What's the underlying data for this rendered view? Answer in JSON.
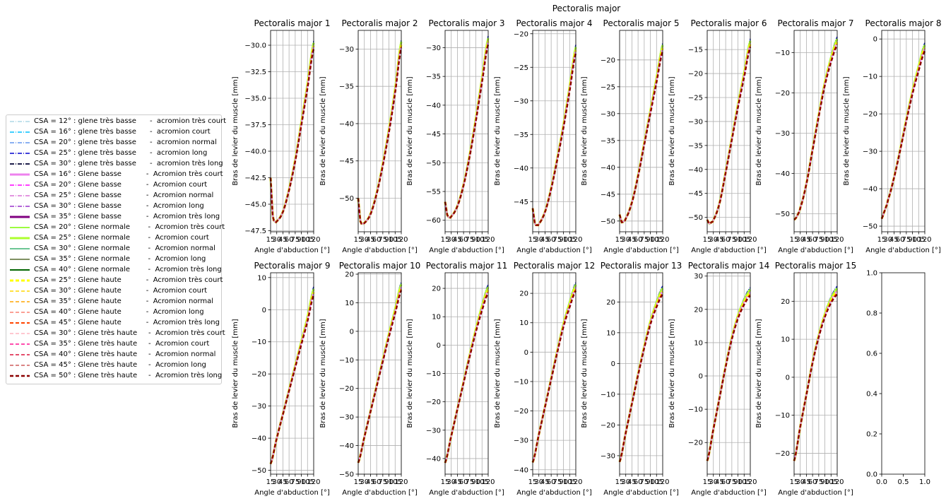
{
  "suptitle": "Pectoralis major",
  "chart_data": [
    {
      "type": "line",
      "title": "Pectoralis major 1",
      "xlabel": "Angle d'abduction [°]",
      "ylabel": "Bras de levier du muscle [mm]",
      "xlim": [
        15,
        120
      ],
      "ylim": [
        -47.6,
        -28.6
      ],
      "yticks": [
        -30.0,
        -32.5,
        -35.0,
        -37.5,
        -40.0,
        -42.5,
        -45.0,
        -47.5
      ],
      "ytick_labels": [
        "−30.0",
        "−32.5",
        "−35.0",
        "−37.5",
        "−40.0",
        "−42.5",
        "−45.0",
        "−47.5"
      ],
      "xtick_labels": [
        "15",
        "30",
        "45",
        "60",
        "75",
        "90",
        "105",
        "120"
      ],
      "grid": true,
      "x": [
        15,
        20,
        25,
        30,
        45,
        60,
        75,
        90,
        105,
        120
      ],
      "y": [
        -42.5,
        -46.0,
        -46.6,
        -46.6,
        -45.7,
        -43.6,
        -40.8,
        -37.3,
        -33.7,
        -29.9
      ]
    },
    {
      "type": "line",
      "title": "Pectoralis major 2",
      "xlabel": "Angle d'abduction [°]",
      "ylabel": "Bras de levier du muscle [mm]",
      "xlim": [
        15,
        120
      ],
      "ylim": [
        -54.5,
        -27.5
      ],
      "yticks": [
        -30,
        -35,
        -40,
        -45,
        -50
      ],
      "ytick_labels": [
        "−30",
        "−35",
        "−40",
        "−45",
        "−50"
      ],
      "xtick_labels": [
        "15",
        "30",
        "45",
        "60",
        "75",
        "90",
        "105",
        "120"
      ],
      "grid": true,
      "x": [
        15,
        20,
        25,
        30,
        45,
        60,
        75,
        90,
        105,
        120
      ],
      "y": [
        -50.0,
        -53.0,
        -53.4,
        -53.3,
        -52.1,
        -49.3,
        -45.4,
        -40.8,
        -35.4,
        -29.2
      ]
    },
    {
      "type": "line",
      "title": "Pectoralis major 3",
      "xlabel": "Angle d'abduction [°]",
      "ylabel": "Bras de levier du muscle [mm]",
      "xlim": [
        15,
        120
      ],
      "ylim": [
        -62.0,
        -27.0
      ],
      "yticks": [
        -30,
        -35,
        -40,
        -45,
        -50,
        -55,
        -60
      ],
      "ytick_labels": [
        "−30",
        "−35",
        "−40",
        "−45",
        "−50",
        "−55",
        "−60"
      ],
      "xtick_labels": [
        "15",
        "30",
        "45",
        "60",
        "75",
        "90",
        "105",
        "120"
      ],
      "grid": true,
      "x": [
        15,
        20,
        25,
        30,
        45,
        60,
        75,
        90,
        105,
        120
      ],
      "y": [
        -56.8,
        -59.0,
        -59.5,
        -59.3,
        -57.5,
        -53.8,
        -48.6,
        -42.3,
        -35.4,
        -28.6
      ]
    },
    {
      "type": "line",
      "title": "Pectoralis major 4",
      "xlabel": "Angle d'abduction [°]",
      "ylabel": "Bras de levier du muscle [mm]",
      "xlim": [
        15,
        120
      ],
      "ylim": [
        -49.5,
        -19.5
      ],
      "yticks": [
        -20,
        -25,
        -30,
        -35,
        -40,
        -45
      ],
      "ytick_labels": [
        "−20",
        "−25",
        "−30",
        "−35",
        "−40",
        "−45"
      ],
      "xtick_labels": [
        "15",
        "30",
        "45",
        "60",
        "75",
        "90",
        "105",
        "120"
      ],
      "grid": true,
      "x": [
        15,
        20,
        25,
        30,
        45,
        60,
        75,
        90,
        105,
        120
      ],
      "y": [
        -46.0,
        -48.2,
        -48.5,
        -48.3,
        -46.5,
        -43.0,
        -38.5,
        -33.6,
        -28.0,
        -22.2
      ]
    },
    {
      "type": "line",
      "title": "Pectoralis major 5",
      "xlabel": "Angle d'abduction [°]",
      "ylabel": "Bras de levier du muscle [mm]",
      "xlim": [
        15,
        120
      ],
      "ylim": [
        -52.0,
        -14.5
      ],
      "yticks": [
        -20,
        -25,
        -30,
        -35,
        -40,
        -45,
        -50
      ],
      "ytick_labels": [
        "−20",
        "−25",
        "−30",
        "−35",
        "−40",
        "−45",
        "−50"
      ],
      "xtick_labels": [
        "15",
        "30",
        "45",
        "60",
        "75",
        "90",
        "105",
        "120"
      ],
      "grid": true,
      "x": [
        15,
        20,
        25,
        30,
        45,
        60,
        75,
        90,
        105,
        120
      ],
      "y": [
        -48.8,
        -50.2,
        -50.0,
        -49.5,
        -46.5,
        -41.5,
        -35.5,
        -29.5,
        -23.5,
        -17.5
      ]
    },
    {
      "type": "line",
      "title": "Pectoralis major 6",
      "xlabel": "Angle d'abduction [°]",
      "ylabel": "Bras de levier du muscle [mm]",
      "xlim": [
        15,
        120
      ],
      "ylim": [
        -53.0,
        -11.0
      ],
      "yticks": [
        -15,
        -20,
        -25,
        -30,
        -35,
        -40,
        -45,
        -50
      ],
      "ytick_labels": [
        "−15",
        "−20",
        "−25",
        "−30",
        "−35",
        "−40",
        "−45",
        "−50"
      ],
      "xtick_labels": [
        "15",
        "30",
        "45",
        "60",
        "75",
        "90",
        "105",
        "120"
      ],
      "grid": true,
      "x": [
        15,
        20,
        25,
        30,
        45,
        60,
        75,
        90,
        105,
        120
      ],
      "y": [
        -50.5,
        -51.3,
        -51.0,
        -50.5,
        -47.0,
        -40.5,
        -33.5,
        -26.5,
        -20.0,
        -13.5
      ]
    },
    {
      "type": "line",
      "title": "Pectoralis major 7",
      "xlabel": "Angle d'abduction [°]",
      "ylabel": "Bras de levier du muscle [mm]",
      "xlim": [
        15,
        120
      ],
      "ylim": [
        -54.5,
        -4.5
      ],
      "yticks": [
        -10,
        -20,
        -30,
        -40,
        -50
      ],
      "ytick_labels": [
        "−10",
        "−20",
        "−30",
        "−40",
        "−50"
      ],
      "xtick_labels": [
        "15",
        "30",
        "45",
        "60",
        "75",
        "90",
        "105",
        "120"
      ],
      "grid": true,
      "x": [
        15,
        20,
        25,
        30,
        45,
        60,
        75,
        90,
        105,
        120
      ],
      "y": [
        -51.5,
        -51.0,
        -50.0,
        -48.5,
        -42.5,
        -34.0,
        -25.5,
        -17.5,
        -11.5,
        -7.0
      ]
    },
    {
      "type": "line",
      "title": "Pectoralis major 8",
      "xlabel": "Angle d'abduction [°]",
      "ylabel": "Bras de levier du muscle [mm]",
      "xlim": [
        15,
        120
      ],
      "ylim": [
        -51.5,
        2.3
      ],
      "yticks": [
        0,
        -10,
        -20,
        -30,
        -40,
        -50
      ],
      "ytick_labels": [
        "0",
        "−10",
        "−20",
        "−30",
        "−40",
        "−50"
      ],
      "xtick_labels": [
        "15",
        "30",
        "45",
        "60",
        "75",
        "90",
        "105",
        "120"
      ],
      "grid": true,
      "x": [
        15,
        20,
        25,
        30,
        45,
        60,
        75,
        90,
        105,
        120
      ],
      "y": [
        -48.0,
        -46.5,
        -45.0,
        -43.0,
        -37.0,
        -29.5,
        -21.5,
        -14.0,
        -7.5,
        -2.0
      ]
    },
    {
      "type": "line",
      "title": "Pectoralis major 9",
      "xlabel": "Angle d'abduction [°]",
      "ylabel": "Bras de levier du muscle [mm]",
      "xlim": [
        15,
        120
      ],
      "ylim": [
        -51.2,
        11.5
      ],
      "yticks": [
        10,
        0,
        -10,
        -20,
        -30,
        -40,
        -50
      ],
      "ytick_labels": [
        "10",
        "0",
        "−10",
        "−20",
        "−30",
        "−40",
        "−50"
      ],
      "xtick_labels": [
        "15",
        "30",
        "45",
        "60",
        "75",
        "90",
        "105",
        "120"
      ],
      "grid": true,
      "x": [
        15,
        30,
        45,
        60,
        75,
        90,
        105,
        120
      ],
      "y": [
        -48.0,
        -40.0,
        -32.5,
        -25.0,
        -17.5,
        -10.0,
        -2.5,
        6.0
      ]
    },
    {
      "type": "line",
      "title": "Pectoralis major 10",
      "xlabel": "Angle d'abduction [°]",
      "ylabel": "Bras de levier du muscle [mm]",
      "xlim": [
        15,
        120
      ],
      "ylim": [
        -50.0,
        20.5
      ],
      "yticks": [
        20,
        10,
        0,
        -10,
        -20,
        -30,
        -40,
        -50
      ],
      "ytick_labels": [
        "20",
        "10",
        "0",
        "−10",
        "−20",
        "−30",
        "−40",
        "−50"
      ],
      "xtick_labels": [
        "15",
        "30",
        "45",
        "60",
        "75",
        "90",
        "105",
        "120"
      ],
      "grid": true,
      "x": [
        15,
        30,
        45,
        60,
        75,
        90,
        105,
        120
      ],
      "y": [
        -46.0,
        -37.0,
        -28.0,
        -19.0,
        -10.0,
        -1.0,
        7.5,
        16.0
      ]
    },
    {
      "type": "line",
      "title": "Pectoralis major 11",
      "xlabel": "Angle d'abduction [°]",
      "ylabel": "Bras de levier du muscle [mm]",
      "xlim": [
        15,
        120
      ],
      "ylim": [
        -45.5,
        25.5
      ],
      "yticks": [
        20,
        10,
        0,
        -10,
        -20,
        -30,
        -40
      ],
      "ytick_labels": [
        "20",
        "10",
        "0",
        "−10",
        "−20",
        "−30",
        "−40"
      ],
      "xtick_labels": [
        "15",
        "30",
        "45",
        "60",
        "75",
        "90",
        "105",
        "120"
      ],
      "grid": true,
      "x": [
        15,
        30,
        45,
        60,
        75,
        90,
        105,
        120
      ],
      "y": [
        -41.5,
        -32.0,
        -22.5,
        -13.0,
        -3.5,
        5.5,
        13.5,
        20.0
      ]
    },
    {
      "type": "line",
      "title": "Pectoralis major 12",
      "xlabel": "Angle d'abduction [°]",
      "ylabel": "Bras de levier du muscle [mm]",
      "xlim": [
        15,
        120
      ],
      "ylim": [
        -41.5,
        27.0
      ],
      "yticks": [
        20,
        10,
        0,
        -10,
        -20,
        -30,
        -40
      ],
      "ytick_labels": [
        "20",
        "10",
        "0",
        "−10",
        "−20",
        "−30",
        "−40"
      ],
      "xtick_labels": [
        "15",
        "30",
        "45",
        "60",
        "75",
        "90",
        "105",
        "120"
      ],
      "grid": true,
      "x": [
        15,
        30,
        45,
        60,
        75,
        90,
        105,
        120
      ],
      "y": [
        -37.5,
        -28.0,
        -18.5,
        -9.0,
        0.5,
        9.5,
        16.5,
        22.5
      ]
    },
    {
      "type": "line",
      "title": "Pectoralis major 13",
      "xlabel": "Angle d'abduction [°]",
      "ylabel": "Bras de levier du muscle [mm]",
      "xlim": [
        15,
        120
      ],
      "ylim": [
        -36.0,
        29.5
      ],
      "yticks": [
        20,
        10,
        0,
        -10,
        -20,
        -30
      ],
      "ytick_labels": [
        "20",
        "10",
        "0",
        "−10",
        "−20",
        "−30"
      ],
      "xtick_labels": [
        "15",
        "30",
        "45",
        "60",
        "75",
        "90",
        "105",
        "120"
      ],
      "grid": true,
      "x": [
        15,
        30,
        45,
        60,
        75,
        90,
        105,
        120
      ],
      "y": [
        -32.0,
        -22.5,
        -13.0,
        -3.5,
        5.5,
        13.5,
        19.5,
        24.0
      ]
    },
    {
      "type": "line",
      "title": "Pectoralis major 14",
      "xlabel": "Angle d'abduction [°]",
      "ylabel": "Bras de levier du muscle [mm]",
      "xlim": [
        15,
        120
      ],
      "ylim": [
        -29.5,
        31.0
      ],
      "yticks": [
        30,
        20,
        10,
        0,
        -10,
        -20
      ],
      "ytick_labels": [
        "30",
        "20",
        "10",
        "0",
        "−10",
        "−20"
      ],
      "xtick_labels": [
        "15",
        "30",
        "45",
        "60",
        "75",
        "90",
        "105",
        "120"
      ],
      "grid": true,
      "x": [
        15,
        30,
        45,
        60,
        75,
        90,
        105,
        120
      ],
      "y": [
        -25.5,
        -16.0,
        -6.5,
        3.0,
        11.5,
        18.0,
        22.5,
        25.5
      ]
    },
    {
      "type": "line",
      "title": "Pectoralis major 15",
      "xlabel": "Angle d'abduction [°]",
      "ylabel": "Bras de levier du muscle [mm]",
      "xlim": [
        15,
        120
      ],
      "ylim": [
        -25.5,
        27.5
      ],
      "yticks": [
        20,
        10,
        0,
        -10,
        -20
      ],
      "ytick_labels": [
        "20",
        "10",
        "0",
        "−10",
        "−20"
      ],
      "xtick_labels": [
        "15",
        "30",
        "45",
        "60",
        "75",
        "90",
        "105",
        "120"
      ],
      "grid": true,
      "x": [
        15,
        30,
        45,
        60,
        75,
        90,
        105,
        120
      ],
      "y": [
        -22.0,
        -13.0,
        -4.5,
        4.0,
        11.0,
        16.5,
        20.5,
        23.0
      ]
    },
    {
      "type": "line",
      "title": "",
      "xlabel": "",
      "ylabel": "",
      "xlim": [
        0.0,
        1.0
      ],
      "ylim": [
        0.0,
        1.0
      ],
      "yticks": [
        0.0,
        0.2,
        0.4,
        0.6,
        0.8,
        1.0
      ],
      "ytick_labels": [
        "0.0",
        "0.2",
        "0.4",
        "0.6",
        "0.8",
        "1.0"
      ],
      "xtick_labels": [
        "0.0",
        "0.5",
        "1.0"
      ],
      "grid": false,
      "x": [],
      "y": []
    }
  ],
  "legend": [
    {
      "label": "CSA = 12° : glene très basse      -  acromion très court",
      "color": "#add8e6",
      "dash": "6,2,1,2",
      "width": 1.5
    },
    {
      "label": "CSA = 16° : glene très basse      -  acromion court",
      "color": "#00bfff",
      "dash": "6,2,1,2",
      "width": 1.5
    },
    {
      "label": "CSA = 20° : glene très basse      -  acromion normal",
      "color": "#6495ed",
      "dash": "6,2,1,2",
      "width": 1.5
    },
    {
      "label": "CSA = 25° : glene très basse      -  acromion long",
      "color": "#0000cd",
      "dash": "6,2,1,2",
      "width": 1.5
    },
    {
      "label": "CSA = 30° : glene très basse      -  acromion très long",
      "color": "#000033",
      "dash": "6,2,1,2",
      "width": 1.8
    },
    {
      "label": "CSA = 16° : Glene basse           -  Acromion très court",
      "color": "#ee82ee",
      "dash": "",
      "width": 3
    },
    {
      "label": "CSA = 20° : Glene basse           -  Acromion court",
      "color": "#ff00ff",
      "dash": "6,2,1,2",
      "width": 1.5
    },
    {
      "label": "CSA = 25° : Glene basse           -  Acromion normal",
      "color": "#da70d6",
      "dash": "6,2,1,2",
      "width": 1.5
    },
    {
      "label": "CSA = 30° : Glene basse           -  Acromion long",
      "color": "#9932cc",
      "dash": "6,2,1,2",
      "width": 1.5
    },
    {
      "label": "CSA = 35° : Glene basse           -  Acromion très long",
      "color": "#800080",
      "dash": "",
      "width": 3
    },
    {
      "label": "CSA = 20° : Glene normale        -  Acromion très court",
      "color": "#7cfc00",
      "dash": "",
      "width": 1.5
    },
    {
      "label": "CSA = 25° : Glene normale        -  Acromion court",
      "color": "#adff2f",
      "dash": "",
      "width": 3
    },
    {
      "label": "CSA = 30° : Glene normale        -  Acromion normal",
      "color": "#3cb371",
      "dash": "",
      "width": 1.5
    },
    {
      "label": "CSA = 35° : Glene normale        -  Acromion long",
      "color": "#556b2f",
      "dash": "",
      "width": 1.5
    },
    {
      "label": "CSA = 40° : Glene normale        -  Acromion très long",
      "color": "#006400",
      "dash": "",
      "width": 2
    },
    {
      "label": "CSA = 25° : Glene haute           -  Acromion très court",
      "color": "#ffff00",
      "dash": "5,3",
      "width": 3
    },
    {
      "label": "CSA = 30° : Glene haute           -  Acromion court",
      "color": "#ffd700",
      "dash": "5,3",
      "width": 1.5
    },
    {
      "label": "CSA = 35° : Glene haute           -  Acromion normal",
      "color": "#ffa500",
      "dash": "5,3",
      "width": 1.5
    },
    {
      "label": "CSA = 40° : Glene haute           -  Acromion long",
      "color": "#fa8072",
      "dash": "5,3",
      "width": 1.5
    },
    {
      "label": "CSA = 45° : Glene haute           -  Acromion très long",
      "color": "#ff4500",
      "dash": "5,3",
      "width": 2
    },
    {
      "label": "CSA = 30° : Glene très haute     -  Acromion très court",
      "color": "#ffb6c1",
      "dash": "5,3",
      "width": 1.5
    },
    {
      "label": "CSA = 35° : Glene très haute     -  Acromion court",
      "color": "#ff1493",
      "dash": "5,3",
      "width": 1.5
    },
    {
      "label": "CSA = 40° : Glene très haute     -  Acromion normal",
      "color": "#dc143c",
      "dash": "5,3",
      "width": 1.5
    },
    {
      "label": "CSA = 45° : Glene très haute     -  Acromion long",
      "color": "#cd5c5c",
      "dash": "5,3",
      "width": 1.5
    },
    {
      "label": "CSA = 50° : Glene très haute     -  Acromion très long",
      "color": "#8b0000",
      "dash": "5,3",
      "width": 2.5
    }
  ]
}
